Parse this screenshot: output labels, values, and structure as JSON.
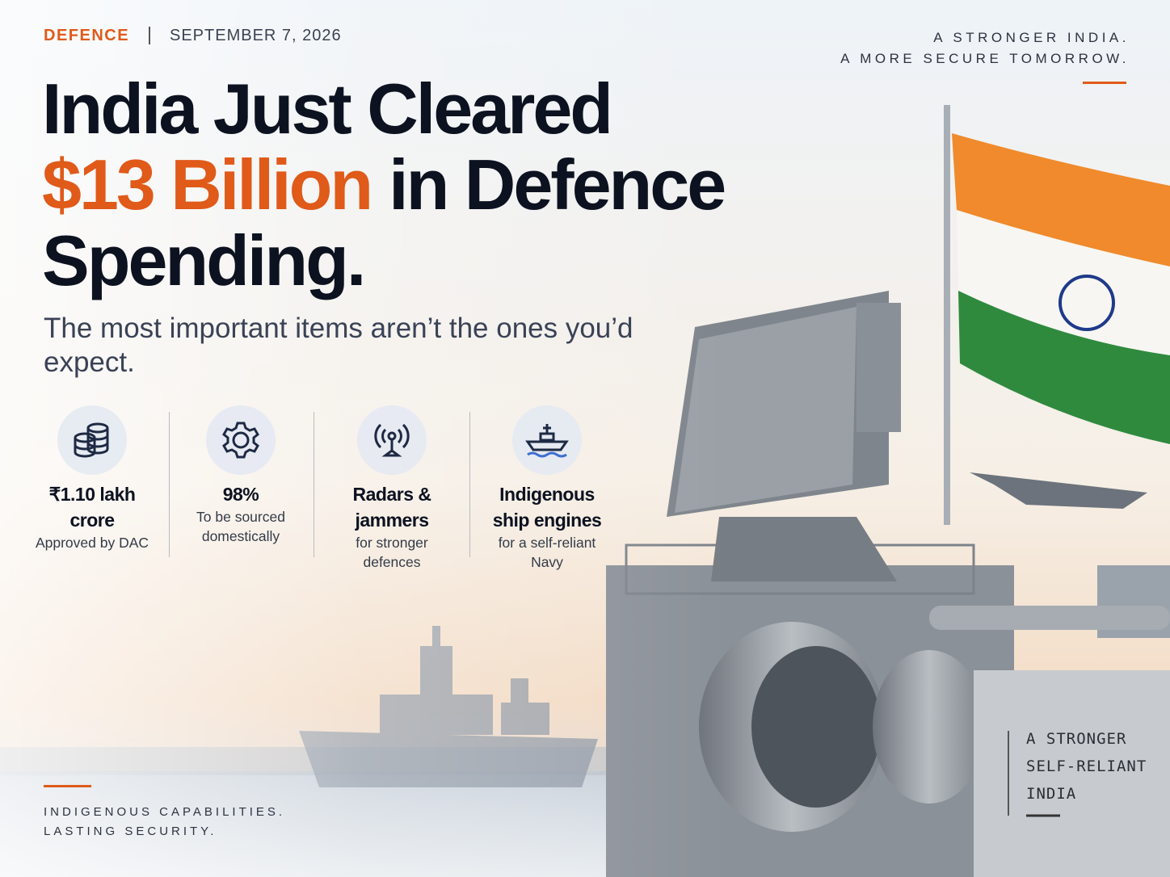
{
  "header": {
    "category": "DEFENCE",
    "date": "SEPTEMBER 7, 2026",
    "tagline": [
      "A STRONGER INDIA.",
      "A MORE SECURE TOMORROW."
    ]
  },
  "headline": {
    "line1": "India Just Cleared",
    "highlight": "$13 Billion",
    "line2_rest": "in Defence",
    "line3": "Spending."
  },
  "subtitle": "The most important items aren’t the ones you’d expect.",
  "stats": [
    {
      "title": "₹1.10 lakh crore",
      "caption": "Approved by DAC"
    },
    {
      "title": "98%",
      "caption": "To be sourced domestically"
    },
    {
      "title": "Radars & jammers",
      "caption": "for stronger defences"
    },
    {
      "title": "Indigenous ship engines",
      "caption": "for a self-reliant Navy"
    }
  ],
  "footer": [
    "INDIGENOUS CAPABILITIES.",
    "LASTING SECURITY."
  ],
  "plate": [
    "A STRONGER",
    "SELF-RELIANT",
    "INDIA"
  ]
}
